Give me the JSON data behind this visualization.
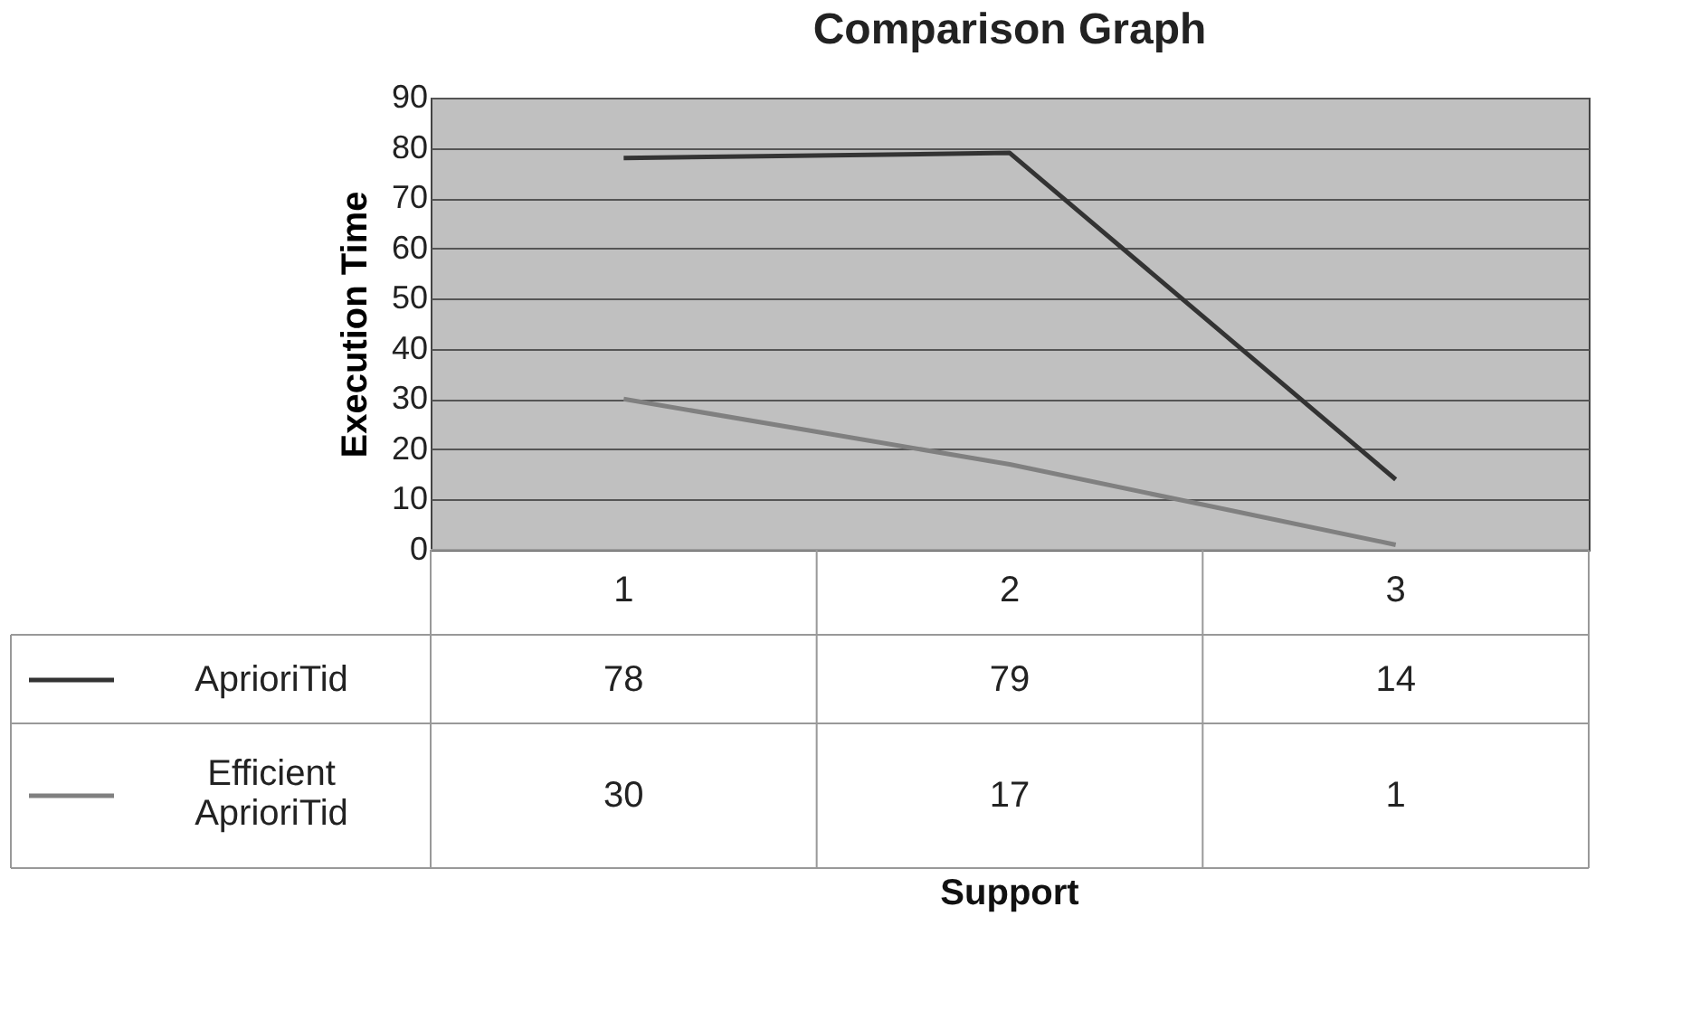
{
  "chart_data": {
    "type": "line",
    "title": "Comparison Graph",
    "annotations": [
      "Support"
    ],
    "ylabel": "Execution Time",
    "legend": "bottom left",
    "categories": [
      "1",
      "2",
      "3"
    ],
    "series": [
      {
        "name": "AprioriTid",
        "color": "#333333",
        "values": [
          78,
          79,
          14
        ]
      },
      {
        "name": "Efficient AprioriTid",
        "color": "#808080",
        "values": [
          30,
          17,
          1
        ]
      }
    ],
    "ylim": [
      0,
      90
    ],
    "yticks": [
      0,
      10,
      20,
      30,
      40,
      50,
      60,
      70,
      80,
      90
    ],
    "grid": "y",
    "data_labels": true,
    "marker": "none",
    "line_style": "solid"
  }
}
